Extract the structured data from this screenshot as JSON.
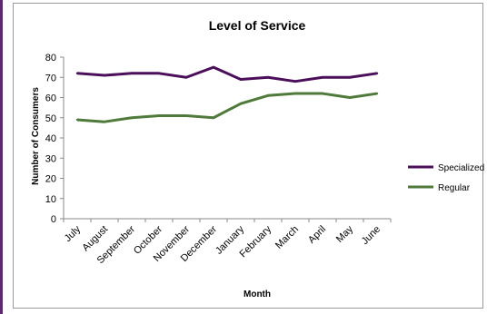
{
  "chart_data": {
    "type": "line",
    "title": "Level of Service",
    "xlabel": "Month",
    "ylabel": "Number of Consumers",
    "categories": [
      "July",
      "August",
      "September",
      "October",
      "November",
      "December",
      "January",
      "February",
      "March",
      "April",
      "May",
      "June"
    ],
    "ylim": [
      0,
      80
    ],
    "yticks": [
      0,
      10,
      20,
      30,
      40,
      50,
      60,
      70,
      80
    ],
    "grid": false,
    "legend_position": "right",
    "series": [
      {
        "name": "Specialized",
        "color": "#4b0f5a",
        "values": [
          72,
          71,
          72,
          72,
          70,
          75,
          69,
          70,
          68,
          70,
          70,
          72
        ]
      },
      {
        "name": "Regular",
        "color": "#4f7a3b",
        "values": [
          49,
          48,
          50,
          51,
          51,
          50,
          57,
          61,
          62,
          62,
          60,
          62
        ]
      }
    ]
  }
}
